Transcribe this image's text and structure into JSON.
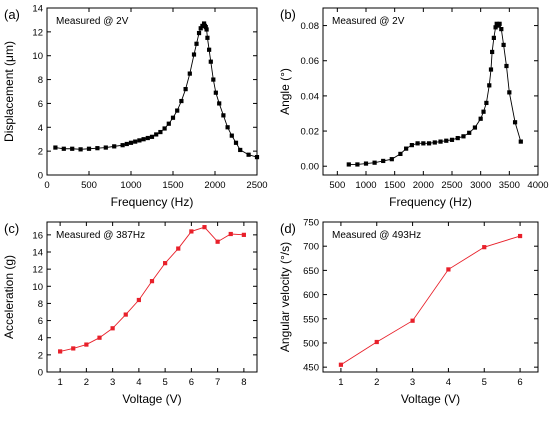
{
  "chart_data": [
    {
      "panel_label": "(a)",
      "type": "line",
      "annotation": "Measured @ 2V",
      "xlabel": "Frequency (Hz)",
      "ylabel": "Displacement (μm)",
      "xlim": [
        0,
        2500
      ],
      "ylim": [
        0,
        14
      ],
      "xticks": [
        0,
        500,
        1000,
        1500,
        2000,
        2500
      ],
      "yticks": [
        0,
        2,
        4,
        6,
        8,
        10,
        12,
        14
      ],
      "marker": "square",
      "color": "#000000",
      "x": [
        100,
        200,
        300,
        400,
        500,
        600,
        700,
        800,
        900,
        950,
        1000,
        1050,
        1100,
        1150,
        1200,
        1250,
        1300,
        1350,
        1400,
        1450,
        1500,
        1550,
        1600,
        1650,
        1700,
        1750,
        1780,
        1810,
        1830,
        1850,
        1870,
        1880,
        1890,
        1900,
        1910,
        1930,
        1950,
        1980,
        2010,
        2050,
        2100,
        2150,
        2200,
        2250,
        2300,
        2400,
        2500
      ],
      "y": [
        2.3,
        2.2,
        2.2,
        2.15,
        2.2,
        2.25,
        2.3,
        2.4,
        2.5,
        2.6,
        2.7,
        2.8,
        2.9,
        3.0,
        3.1,
        3.2,
        3.4,
        3.6,
        3.9,
        4.3,
        4.8,
        5.4,
        6.2,
        7.2,
        8.5,
        10.1,
        11.0,
        11.9,
        12.3,
        12.5,
        12.7,
        12.5,
        12.4,
        12.2,
        11.5,
        10.5,
        9.5,
        8.0,
        6.9,
        6.0,
        5.0,
        4.0,
        3.3,
        2.7,
        2.1,
        1.7,
        1.5
      ]
    },
    {
      "panel_label": "(b)",
      "type": "line",
      "annotation": "Measured @ 2V",
      "xlabel": "Frequency (Hz)",
      "ylabel": "Angle (°)",
      "xlim": [
        250,
        4000
      ],
      "ylim": [
        -0.005,
        0.09
      ],
      "xticks": [
        500,
        1000,
        1500,
        2000,
        2500,
        3000,
        3500,
        4000
      ],
      "yticks": [
        0.0,
        0.02,
        0.04,
        0.06,
        0.08
      ],
      "ytick_labels": [
        "0.00",
        "0.02",
        "0.04",
        "0.06",
        "0.08"
      ],
      "marker": "square",
      "color": "#000000",
      "x": [
        700,
        850,
        1000,
        1150,
        1300,
        1450,
        1600,
        1700,
        1800,
        1900,
        2000,
        2100,
        2200,
        2300,
        2400,
        2500,
        2600,
        2700,
        2800,
        2900,
        3000,
        3050,
        3100,
        3150,
        3180,
        3200,
        3230,
        3260,
        3280,
        3300,
        3330,
        3360,
        3400,
        3450,
        3500,
        3600,
        3700
      ],
      "y": [
        0.001,
        0.001,
        0.0015,
        0.002,
        0.003,
        0.004,
        0.007,
        0.01,
        0.012,
        0.013,
        0.013,
        0.013,
        0.0135,
        0.014,
        0.0145,
        0.015,
        0.016,
        0.017,
        0.019,
        0.022,
        0.027,
        0.031,
        0.036,
        0.046,
        0.055,
        0.065,
        0.073,
        0.079,
        0.081,
        0.08,
        0.081,
        0.078,
        0.069,
        0.057,
        0.042,
        0.025,
        0.014
      ]
    },
    {
      "panel_label": "(c)",
      "type": "line",
      "annotation": "Measured @ 387Hz",
      "xlabel": "Voltage (V)",
      "ylabel": "Acceleration (g)",
      "xlim": [
        0.5,
        8.5
      ],
      "ylim": [
        0,
        17.5
      ],
      "xticks": [
        1,
        2,
        3,
        4,
        5,
        6,
        7,
        8
      ],
      "yticks": [
        0,
        2,
        4,
        6,
        8,
        10,
        12,
        14,
        16
      ],
      "marker": "square",
      "color": "#e8202a",
      "x": [
        1,
        1.5,
        2,
        2.5,
        3,
        3.5,
        4,
        4.5,
        5,
        5.5,
        6,
        6.5,
        7,
        7.5,
        8
      ],
      "y": [
        2.4,
        2.75,
        3.2,
        4.0,
        5.1,
        6.7,
        8.4,
        10.6,
        12.7,
        14.4,
        16.4,
        16.9,
        15.2,
        16.1,
        16.0
      ]
    },
    {
      "panel_label": "(d)",
      "type": "line",
      "annotation": "Measured @ 493Hz",
      "xlabel": "Voltage (V)",
      "ylabel": "Angular velocity (°/s)",
      "xlim": [
        0.5,
        6.5
      ],
      "ylim": [
        440,
        750
      ],
      "xticks": [
        1,
        2,
        3,
        4,
        5,
        6
      ],
      "yticks": [
        450,
        500,
        550,
        600,
        650,
        700,
        750
      ],
      "marker": "square",
      "color": "#e8202a",
      "x": [
        1,
        2,
        3,
        4,
        5,
        6
      ],
      "y": [
        455,
        502,
        546,
        652,
        698,
        721
      ]
    }
  ]
}
